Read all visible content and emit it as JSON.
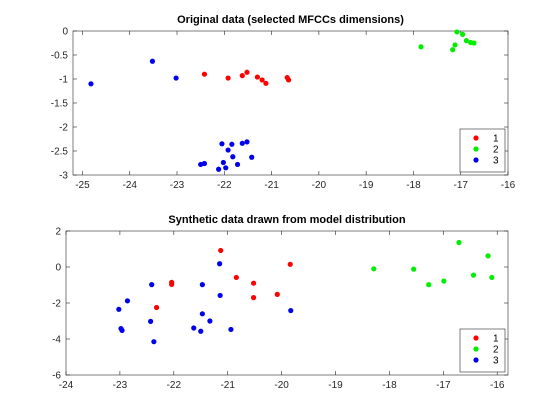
{
  "chart_data": [
    {
      "type": "scatter",
      "title": "Original data (selected MFCCs dimensions)",
      "xlabel": "",
      "ylabel": "",
      "xlim": [
        -25.2,
        -16
      ],
      "ylim": [
        -3,
        0
      ],
      "xticks": [
        "-25",
        "-24",
        "-23",
        "-22",
        "-21",
        "-20",
        "-19",
        "-18",
        "-17",
        "-16"
      ],
      "yticks": [
        "0",
        "-0.5",
        "-1",
        "-1.5",
        "-2",
        "-2.5",
        "-3"
      ],
      "legend_position": "bottom-right",
      "grid": false,
      "series": [
        {
          "name": "1",
          "color": "#ff0000",
          "points": [
            [
              -22.42,
              -0.9
            ],
            [
              -21.92,
              -0.98
            ],
            [
              -21.62,
              -0.93
            ],
            [
              -21.52,
              -0.86
            ],
            [
              -21.3,
              -0.96
            ],
            [
              -21.2,
              -1.02
            ],
            [
              -21.12,
              -1.09
            ],
            [
              -20.67,
              -0.97
            ],
            [
              -20.64,
              -1.02
            ]
          ]
        },
        {
          "name": "2",
          "color": "#00ee00",
          "points": [
            [
              -17.84,
              -0.33
            ],
            [
              -17.17,
              -0.39
            ],
            [
              -17.12,
              -0.29
            ],
            [
              -17.08,
              -0.02
            ],
            [
              -16.96,
              -0.07
            ],
            [
              -16.88,
              -0.2
            ],
            [
              -16.79,
              -0.24
            ],
            [
              -16.72,
              -0.25
            ]
          ]
        },
        {
          "name": "3",
          "color": "#0000ee",
          "points": [
            [
              -24.82,
              -1.1
            ],
            [
              -23.52,
              -0.63
            ],
            [
              -23.02,
              -0.98
            ],
            [
              -22.42,
              -2.76
            ],
            [
              -22.5,
              -2.78
            ],
            [
              -22.12,
              -2.88
            ],
            [
              -22.02,
              -2.74
            ],
            [
              -21.97,
              -2.85
            ],
            [
              -21.92,
              -2.48
            ],
            [
              -21.84,
              -2.36
            ],
            [
              -21.82,
              -2.62
            ],
            [
              -21.72,
              -2.78
            ],
            [
              -21.62,
              -2.34
            ],
            [
              -21.52,
              -2.31
            ],
            [
              -21.42,
              -2.63
            ],
            [
              -22.05,
              -2.35
            ]
          ]
        }
      ]
    },
    {
      "type": "scatter",
      "title": "Synthetic data drawn from model distribution",
      "xlabel": "",
      "ylabel": "",
      "xlim": [
        -24,
        -15.8
      ],
      "ylim": [
        -6,
        2
      ],
      "xticks": [
        "-24",
        "-23",
        "-22",
        "-21",
        "-20",
        "-19",
        "-18",
        "-17",
        "-16"
      ],
      "yticks": [
        "2",
        "0",
        "-2",
        "-4",
        "-6"
      ],
      "legend_position": "bottom-right",
      "grid": false,
      "series": [
        {
          "name": "1",
          "color": "#ff0000",
          "points": [
            [
              -22.32,
              -2.25
            ],
            [
              -22.04,
              -0.97
            ],
            [
              -22.04,
              -0.85
            ],
            [
              -21.13,
              0.92
            ],
            [
              -20.84,
              -0.58
            ],
            [
              -20.52,
              -0.9
            ],
            [
              -20.52,
              -1.7
            ],
            [
              -20.08,
              -1.52
            ],
            [
              -19.84,
              0.15
            ]
          ]
        },
        {
          "name": "2",
          "color": "#00ee00",
          "points": [
            [
              -18.29,
              -0.1
            ],
            [
              -17.55,
              -0.12
            ],
            [
              -17.27,
              -0.98
            ],
            [
              -16.99,
              -0.78
            ],
            [
              -16.71,
              1.36
            ],
            [
              -16.44,
              -0.45
            ],
            [
              -16.17,
              0.62
            ],
            [
              -16.1,
              -0.58
            ]
          ]
        },
        {
          "name": "3",
          "color": "#0000ee",
          "points": [
            [
              -23.02,
              -2.35
            ],
            [
              -22.98,
              -3.42
            ],
            [
              -22.96,
              -3.52
            ],
            [
              -22.86,
              -1.88
            ],
            [
              -22.41,
              -0.98
            ],
            [
              -22.43,
              -3.02
            ],
            [
              -22.37,
              -4.15
            ],
            [
              -21.63,
              -3.39
            ],
            [
              -21.5,
              -3.57
            ],
            [
              -21.47,
              -0.98
            ],
            [
              -21.47,
              -2.6
            ],
            [
              -21.33,
              -3.0
            ],
            [
              -21.15,
              0.18
            ],
            [
              -21.14,
              -1.58
            ],
            [
              -20.94,
              -3.47
            ],
            [
              -19.83,
              -2.42
            ]
          ]
        }
      ]
    }
  ]
}
